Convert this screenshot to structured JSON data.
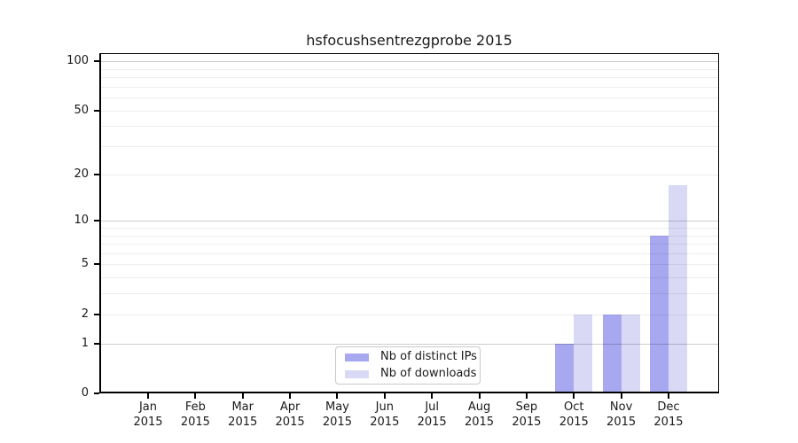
{
  "chart_data": {
    "type": "bar",
    "title": "hsfocushsentrezgprobe 2015",
    "categories": [
      "Jan",
      "Feb",
      "Mar",
      "Apr",
      "May",
      "Jun",
      "Jul",
      "Aug",
      "Sep",
      "Oct",
      "Nov",
      "Dec"
    ],
    "x_year_label": "2015",
    "series": [
      {
        "name": "Nb of distinct IPs",
        "color": "#a8a8f0",
        "values": [
          0,
          0,
          0,
          0,
          0,
          0,
          0,
          0,
          0,
          1,
          2,
          8
        ]
      },
      {
        "name": "Nb of downloads",
        "color": "#d9d9f6",
        "values": [
          0,
          0,
          0,
          0,
          0,
          0,
          0,
          0,
          0,
          2,
          2,
          17
        ]
      }
    ],
    "y_axis": {
      "scale": "log1p",
      "tick_values": [
        0,
        1,
        2,
        5,
        10,
        20,
        50,
        100
      ],
      "major_gridlines": [
        1,
        10,
        100
      ],
      "minor_gridlines": [
        2,
        3,
        4,
        5,
        6,
        7,
        8,
        9,
        20,
        30,
        40,
        50,
        60,
        70,
        80,
        90
      ],
      "ylim": [
        0,
        110
      ]
    },
    "legend": {
      "position": "lower-center",
      "entries": [
        "Nb of distinct IPs",
        "Nb of downloads"
      ]
    },
    "grid": true
  },
  "colors": {
    "distinct_ips": "#a8a8f0",
    "downloads": "#d9d9f6",
    "major_grid": "rgba(0,0,0,0.20)",
    "minor_grid": "rgba(0,0,0,0.07)",
    "text": "#1a1a1a"
  }
}
